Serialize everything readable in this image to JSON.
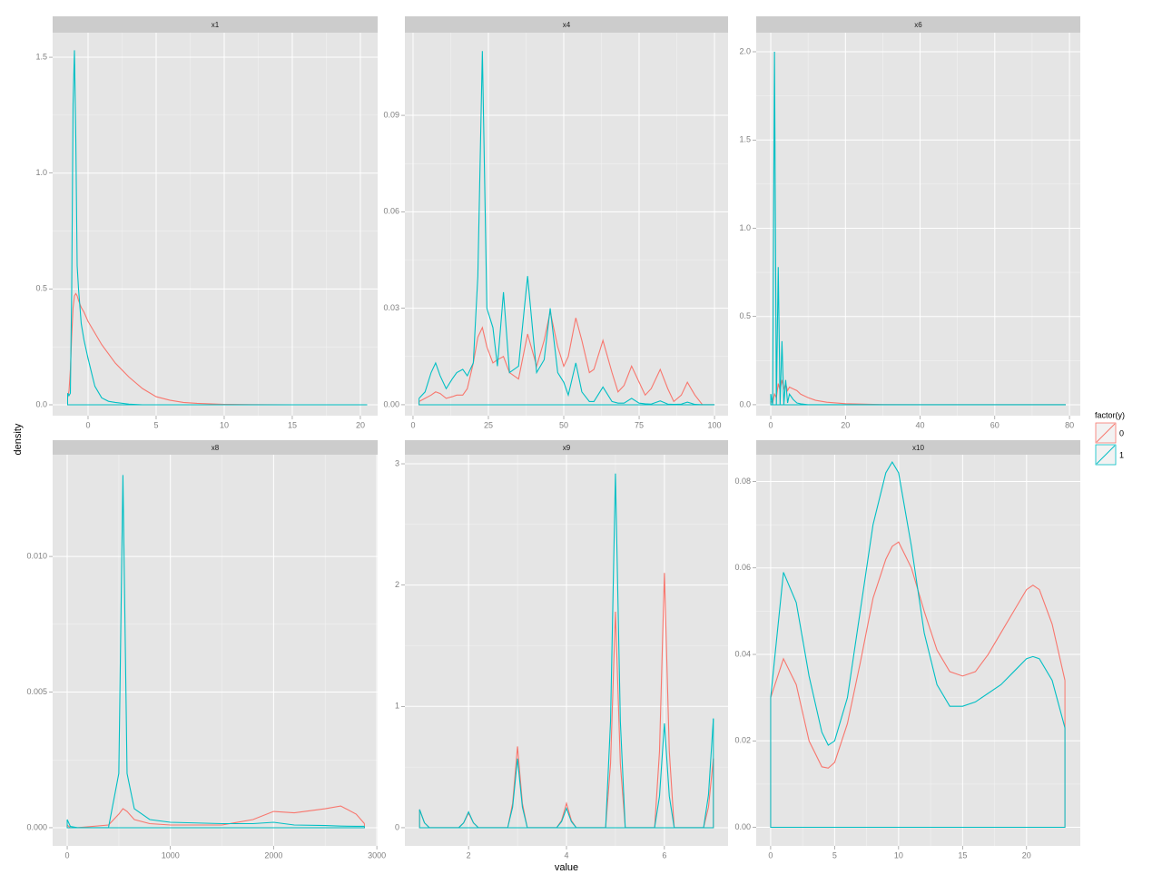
{
  "chart_data": [
    {
      "type": "line",
      "title": "x1",
      "x": [
        -1.5,
        -1.4,
        -1.3,
        -1.2,
        -1.1,
        -1.0,
        -0.9,
        -0.8,
        -0.7,
        -0.5,
        -0.3,
        0,
        0.5,
        1,
        1.5,
        2,
        3,
        4,
        5,
        6,
        7,
        8,
        10,
        12,
        15,
        20.5
      ],
      "series": [
        {
          "name": "0",
          "color": "#F8766D",
          "values": [
            0.03,
            0.06,
            0.15,
            0.3,
            0.42,
            0.47,
            0.48,
            0.47,
            0.45,
            0.42,
            0.4,
            0.36,
            0.31,
            0.26,
            0.22,
            0.18,
            0.12,
            0.07,
            0.035,
            0.02,
            0.01,
            0.006,
            0.002,
            0.001,
            0,
            0
          ]
        },
        {
          "name": "1",
          "color": "#00BFC4",
          "values": [
            0.05,
            0.04,
            0.05,
            0.5,
            1.3,
            1.53,
            1.15,
            0.6,
            0.5,
            0.35,
            0.28,
            0.2,
            0.08,
            0.03,
            0.015,
            0.01,
            0.003,
            0,
            0,
            0,
            0,
            0,
            0,
            0,
            0,
            0
          ]
        }
      ],
      "xlim": [
        -2.6,
        21.27
      ],
      "xticks": [
        0,
        5,
        10,
        15,
        20
      ],
      "ylim": [
        -0.047,
        1.606
      ],
      "yticks": [
        {
          "value": 0,
          "label": "0.0"
        },
        {
          "value": 0.5,
          "label": "0.5"
        },
        {
          "value": 1,
          "label": "1.0"
        },
        {
          "value": 1.5,
          "label": "1.5"
        }
      ],
      "grid": true
    },
    {
      "type": "line",
      "title": "x4",
      "x": [
        2,
        4,
        6,
        7.5,
        9,
        11,
        13,
        14.5,
        16.5,
        18,
        20,
        21.5,
        23,
        24.5,
        26.5,
        28,
        30,
        32,
        35,
        38,
        41,
        43.5,
        45.5,
        48,
        50,
        51.5,
        54,
        56,
        58.5,
        60,
        63,
        66,
        68,
        70,
        72.5,
        75,
        77,
        79,
        82,
        84.5,
        86.5,
        89,
        91,
        93.5,
        96,
        100
      ],
      "series": [
        {
          "name": "0",
          "color": "#F8766D",
          "values": [
            0.001,
            0.002,
            0.003,
            0.004,
            0.0035,
            0.002,
            0.0025,
            0.003,
            0.003,
            0.005,
            0.013,
            0.021,
            0.024,
            0.018,
            0.013,
            0.014,
            0.015,
            0.01,
            0.008,
            0.022,
            0.012,
            0.02,
            0.029,
            0.018,
            0.012,
            0.015,
            0.027,
            0.02,
            0.01,
            0.011,
            0.02,
            0.01,
            0.004,
            0.006,
            0.012,
            0.007,
            0.003,
            0.005,
            0.011,
            0.005,
            0.001,
            0.003,
            0.007,
            0.003,
            0,
            0
          ]
        },
        {
          "name": "1",
          "color": "#00BFC4",
          "values": [
            0.002,
            0.004,
            0.01,
            0.013,
            0.009,
            0.005,
            0.008,
            0.01,
            0.011,
            0.009,
            0.013,
            0.04,
            0.11,
            0.03,
            0.024,
            0.012,
            0.035,
            0.01,
            0.012,
            0.04,
            0.01,
            0.014,
            0.03,
            0.01,
            0.007,
            0.003,
            0.013,
            0.004,
            0.001,
            0.001,
            0.0055,
            0.001,
            0.0005,
            0.0005,
            0.002,
            0.0005,
            0.0003,
            0.0002,
            0.0012,
            0.0002,
            0.0001,
            0.0002,
            0.0008,
            0.0001,
            0,
            0
          ]
        }
      ],
      "xlim": [
        -2.7,
        104.5
      ],
      "xticks": [
        0,
        25,
        50,
        75,
        100
      ],
      "ylim": [
        -0.0034,
        0.1157
      ],
      "yticks": [
        {
          "value": 0,
          "label": "0.00"
        },
        {
          "value": 0.03,
          "label": "0.03"
        },
        {
          "value": 0.06,
          "label": "0.06"
        },
        {
          "value": 0.09,
          "label": "0.09"
        }
      ],
      "grid": true
    },
    {
      "type": "line",
      "title": "x6",
      "x": [
        0,
        0.5,
        1,
        1.5,
        2,
        2.5,
        3,
        3.5,
        4,
        4.5,
        5,
        6,
        7,
        8,
        10,
        12,
        15,
        20,
        25,
        30,
        40,
        50,
        60,
        79
      ],
      "series": [
        {
          "name": "0",
          "color": "#F8766D",
          "values": [
            0.02,
            0.01,
            0.06,
            0.04,
            0.12,
            0.08,
            0.14,
            0.09,
            0.12,
            0.08,
            0.1,
            0.09,
            0.08,
            0.06,
            0.04,
            0.025,
            0.014,
            0.006,
            0.003,
            0.001,
            0,
            0,
            0,
            0
          ]
        },
        {
          "name": "1",
          "color": "#00BFC4",
          "values": [
            0.06,
            0,
            2.0,
            0,
            0.78,
            0,
            0.36,
            0,
            0.14,
            0.01,
            0.06,
            0.03,
            0.01,
            0.005,
            0,
            0,
            0,
            0,
            0,
            0,
            0,
            0,
            0,
            0
          ]
        }
      ],
      "xlim": [
        -3.9,
        82.9
      ],
      "xticks": [
        0,
        20,
        40,
        60,
        80
      ],
      "ylim": [
        -0.062,
        2.108
      ],
      "yticks": [
        {
          "value": 0,
          "label": "0.0"
        },
        {
          "value": 0.5,
          "label": "0.5"
        },
        {
          "value": 1,
          "label": "1.0"
        },
        {
          "value": 1.5,
          "label": "1.5"
        },
        {
          "value": 2,
          "label": "2.0"
        }
      ],
      "grid": true
    },
    {
      "type": "line",
      "title": "x8",
      "x": [
        0,
        30,
        100,
        400,
        500,
        540,
        580,
        650,
        800,
        1000,
        1500,
        1800,
        2000,
        2200,
        2500,
        2650,
        2800,
        2880
      ],
      "series": [
        {
          "name": "0",
          "color": "#F8766D",
          "values": [
            0.0001,
            0,
            0,
            0.0001,
            0.0005,
            0.0007,
            0.0006,
            0.0003,
            0.00015,
            0.0001,
            0.0001,
            0.0003,
            0.0006,
            0.00055,
            0.0007,
            0.0008,
            0.0005,
            0.00015
          ]
        },
        {
          "name": "1",
          "color": "#00BFC4",
          "values": [
            0.0003,
            5e-05,
            0,
            0,
            0.002,
            0.013,
            0.002,
            0.0007,
            0.0003,
            0.0002,
            0.00015,
            0.00015,
            0.0002,
            0.0001,
            8e-05,
            6e-05,
            5e-05,
            5e-05
          ]
        }
      ],
      "xlim": [
        -141,
        3008
      ],
      "xticks": [
        0,
        1000,
        2000,
        3000
      ],
      "ylim": [
        -0.00067,
        0.01375
      ],
      "yticks": [
        {
          "value": 0,
          "label": "0.000"
        },
        {
          "value": 0.005,
          "label": "0.005"
        },
        {
          "value": 0.01,
          "label": "0.010"
        }
      ],
      "grid": true
    },
    {
      "type": "line",
      "title": "x9",
      "x": [
        1,
        1.1,
        1.2,
        1.8,
        1.9,
        2,
        2.1,
        2.2,
        2.8,
        2.9,
        3,
        3.1,
        3.2,
        3.8,
        3.9,
        4,
        4.1,
        4.2,
        4.8,
        4.9,
        5,
        5.1,
        5.2,
        5.8,
        5.9,
        6,
        6.1,
        6.2,
        6.8,
        6.9,
        7
      ],
      "series": [
        {
          "name": "0",
          "color": "#F8766D",
          "values": [
            0.15,
            0.04,
            0,
            0,
            0.04,
            0.12,
            0.04,
            0,
            0,
            0.2,
            0.67,
            0.2,
            0,
            0,
            0.06,
            0.2,
            0.06,
            0,
            0,
            0.53,
            1.78,
            0.53,
            0,
            0,
            0.63,
            2.1,
            0.63,
            0,
            0,
            0.17,
            0.57
          ]
        },
        {
          "name": "1",
          "color": "#00BFC4",
          "values": [
            0.15,
            0.04,
            0,
            0,
            0.04,
            0.13,
            0.04,
            0,
            0,
            0.17,
            0.57,
            0.17,
            0,
            0,
            0.05,
            0.16,
            0.05,
            0,
            0,
            0.88,
            2.92,
            0.88,
            0,
            0,
            0.26,
            0.86,
            0.26,
            0,
            0,
            0.27,
            0.9
          ]
        }
      ],
      "xlim": [
        0.7,
        7.3
      ],
      "xticks": [
        2,
        4,
        6
      ],
      "ylim": [
        -0.15,
        3.075
      ],
      "yticks": [
        0,
        1,
        2,
        3
      ],
      "grid": true
    },
    {
      "type": "line",
      "title": "x10",
      "x": [
        0,
        1,
        2,
        3,
        4,
        4.5,
        5,
        6,
        7,
        8,
        9,
        9.5,
        10,
        11,
        12,
        13,
        14,
        15,
        16,
        17,
        18,
        19,
        20,
        20.5,
        21,
        22,
        23
      ],
      "series": [
        {
          "name": "0",
          "color": "#F8766D",
          "values": [
            0.03,
            0.039,
            0.033,
            0.02,
            0.014,
            0.0137,
            0.015,
            0.024,
            0.038,
            0.053,
            0.062,
            0.065,
            0.066,
            0.06,
            0.05,
            0.041,
            0.036,
            0.035,
            0.036,
            0.04,
            0.045,
            0.05,
            0.055,
            0.056,
            0.055,
            0.047,
            0.034
          ]
        },
        {
          "name": "1",
          "color": "#00BFC4",
          "values": [
            0.03,
            0.059,
            0.052,
            0.035,
            0.022,
            0.019,
            0.02,
            0.03,
            0.05,
            0.07,
            0.082,
            0.0845,
            0.082,
            0.065,
            0.045,
            0.033,
            0.028,
            0.028,
            0.029,
            0.031,
            0.033,
            0.036,
            0.039,
            0.0395,
            0.039,
            0.034,
            0.023
          ]
        }
      ],
      "xlim": [
        -1.13,
        24.2
      ],
      "xticks": [
        0,
        5,
        10,
        15,
        20
      ],
      "ylim": [
        -0.0043,
        0.0862
      ],
      "yticks": [
        {
          "value": 0,
          "label": "0.00"
        },
        {
          "value": 0.02,
          "label": "0.02"
        },
        {
          "value": 0.04,
          "label": "0.04"
        },
        {
          "value": 0.06,
          "label": "0.06"
        },
        {
          "value": 0.08,
          "label": "0.08"
        }
      ],
      "grid": true
    }
  ],
  "x_label": "value",
  "y_label": "density",
  "legend_title": "factor(y)"
}
